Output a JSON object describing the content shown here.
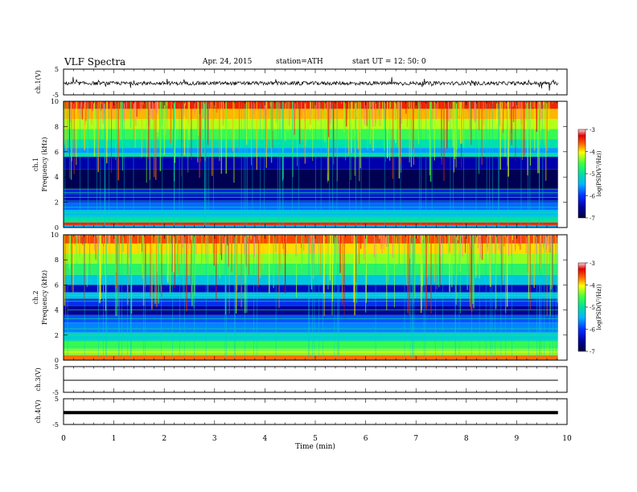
{
  "header": {
    "title": "VLF  Spectra",
    "date": "Apr. 24, 2015",
    "station": "station=ATH",
    "start": "start  UT  =    12: 50: 0"
  },
  "colors": {
    "background": "#ffffff",
    "axis": "#000000",
    "colormap": [
      "#000060",
      "#0000ff",
      "#00b4ff",
      "#00e0c0",
      "#40ff40",
      "#ffff00",
      "#ff6000",
      "#e00000",
      "#ffb0b0"
    ]
  },
  "chart_data": [
    {
      "type": "line",
      "name": "ch1-waveform",
      "ylabel": "ch.1(V)",
      "ylim": [
        -5,
        5
      ],
      "yticks": [
        "5",
        "-5"
      ],
      "xlim": [
        0,
        10
      ],
      "trace": "noisy waveform around -0.5 V",
      "x_end": 9.82
    },
    {
      "type": "heatmap",
      "name": "ch1-spectrogram",
      "ylabel": "ch.1 Frequency (kHz)",
      "ylabel_lines": [
        "ch.1",
        "Frequency (kHz)"
      ],
      "ylim": [
        0,
        10
      ],
      "yticks": [
        "0",
        "2",
        "4",
        "6",
        "8",
        "10"
      ],
      "xlim": [
        0,
        10
      ],
      "x_end": 9.82,
      "colorbar": {
        "label": "log(PSD(V²/Hz))",
        "range": [
          -7,
          -3
        ],
        "ticks": [
          "-3",
          "-4",
          "-5",
          "-6",
          "-7"
        ]
      }
    },
    {
      "type": "heatmap",
      "name": "ch2-spectrogram",
      "ylabel": "ch.2 Frequency (kHz)",
      "ylabel_lines": [
        "ch.2",
        "Frequency (kHz)"
      ],
      "ylim": [
        0,
        10
      ],
      "yticks": [
        "0",
        "2",
        "4",
        "6",
        "8",
        "10"
      ],
      "xlim": [
        0,
        10
      ],
      "x_end": 9.82,
      "colorbar": {
        "label": "log(PSD(V²/Hz))",
        "range": [
          -7,
          -3
        ],
        "ticks": [
          "-3",
          "-4",
          "-5",
          "-6",
          "-7"
        ]
      }
    },
    {
      "type": "line",
      "name": "ch3-waveform",
      "ylabel": "ch.3(V)",
      "ylim": [
        -5,
        5
      ],
      "yticks": [
        "5",
        "-5"
      ],
      "xlim": [
        0,
        10
      ],
      "trace": "flat line near 0 V",
      "x_end": 9.82
    },
    {
      "type": "line",
      "name": "ch4-waveform",
      "ylabel": "ch.4(V)",
      "ylim": [
        -5,
        5
      ],
      "yticks": [
        "5",
        "-5"
      ],
      "xlim": [
        0,
        10
      ],
      "trace": "thick flat band near 0 V",
      "x_end": 9.82,
      "xlabel": "Time  (min)",
      "xticks": [
        "0",
        "1",
        "2",
        "3",
        "4",
        "5",
        "6",
        "7",
        "8",
        "9",
        "10"
      ]
    }
  ]
}
